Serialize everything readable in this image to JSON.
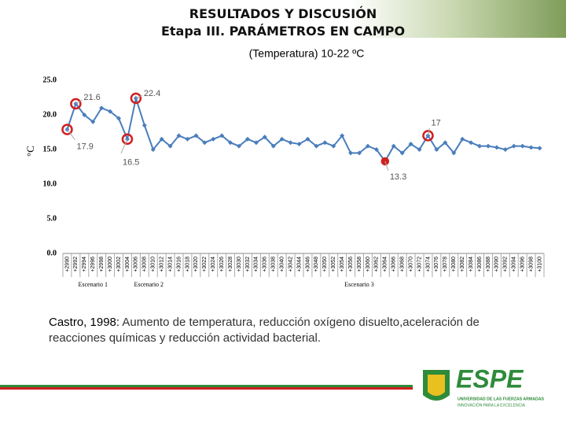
{
  "header": {
    "title": "RESULTADOS Y DISCUSIÓN",
    "subtitle": "Etapa III. PARÁMETROS EN CAMPO"
  },
  "chart_data": {
    "type": "line",
    "title": "(Temperatura) 10-22 ºC",
    "y_label": "°C",
    "color": "#4a7ebb",
    "categories": [
      "+2990",
      "+2992",
      "+2994",
      "+2996",
      "+2998",
      "+3000",
      "+3002",
      "+3004",
      "+3006",
      "+3008",
      "+3010",
      "+3012",
      "+3014",
      "+3016",
      "+3018",
      "+3020",
      "+3022",
      "+3024",
      "+3026",
      "+3028",
      "+3030",
      "+3032",
      "+3034",
      "+3036",
      "+3038",
      "+3040",
      "+3042",
      "+3044",
      "+3046",
      "+3048",
      "+3050",
      "+3052",
      "+3054",
      "+3056",
      "+3058",
      "+3060",
      "+3062",
      "+3064",
      "+3066",
      "+3068",
      "+3070",
      "+3072",
      "+3074",
      "+3076",
      "+3078",
      "+3080",
      "+3082",
      "+3084",
      "+3086",
      "+3088",
      "+3090",
      "+3092",
      "+3094",
      "+3096",
      "+3098",
      "+3100"
    ],
    "values": [
      17.9,
      21.6,
      20.0,
      19.0,
      21.0,
      20.5,
      19.5,
      16.5,
      22.4,
      18.5,
      15.0,
      16.5,
      15.5,
      17.0,
      16.5,
      17.0,
      16.0,
      16.5,
      17.0,
      16.0,
      15.5,
      16.5,
      16.0,
      16.8,
      15.5,
      16.5,
      16.0,
      15.8,
      16.5,
      15.5,
      16.0,
      15.5,
      17.0,
      14.5,
      14.5,
      15.5,
      15.0,
      13.3,
      15.5,
      14.5,
      15.8,
      15.0,
      17.0,
      15.0,
      16.0,
      14.5,
      16.5,
      16.0,
      15.5,
      15.5,
      15.3,
      15.0,
      15.5,
      15.5,
      15.3,
      15.2
    ],
    "ylim": [
      0,
      25
    ],
    "yticks": [
      {
        "value": 0,
        "label": "0.0"
      },
      {
        "value": 5,
        "label": "5.0"
      },
      {
        "value": 10,
        "label": "10.0"
      },
      {
        "value": 15,
        "label": "15.0"
      },
      {
        "value": 20,
        "label": "20.0"
      },
      {
        "value": 25,
        "label": "25.0"
      }
    ],
    "annotations": [
      {
        "x": "+2992",
        "y": 21.6
      },
      {
        "x": "+3006",
        "y": 22.4
      },
      {
        "x": "+2990",
        "y": 17.9
      },
      {
        "x": "+3004",
        "y": 16.5
      },
      {
        "x": "+3074",
        "y": 17.0
      },
      {
        "x": "+3064",
        "y": 13.3
      }
    ],
    "groups": [
      {
        "label": "Escenario 1",
        "from": "+2990",
        "to": "+3002"
      },
      {
        "label": "Escenario 2",
        "from": "+3002",
        "to": "+3016"
      },
      {
        "label": "Escenario 3",
        "from": "+3016",
        "to": "+3100"
      }
    ]
  },
  "note": {
    "citation": "Castro, 1998:",
    "text": "Aumento de temperatura, reducción oxígeno disuelto,aceleración de reacciones químicas y reducción actividad bacterial."
  },
  "logo": {
    "name": "ESPE",
    "line1": "UNIVERSIDAD DE LAS FUERZAS ARMADAS",
    "line2": "INNOVACIÓN PARA LA EXCELENCIA"
  }
}
